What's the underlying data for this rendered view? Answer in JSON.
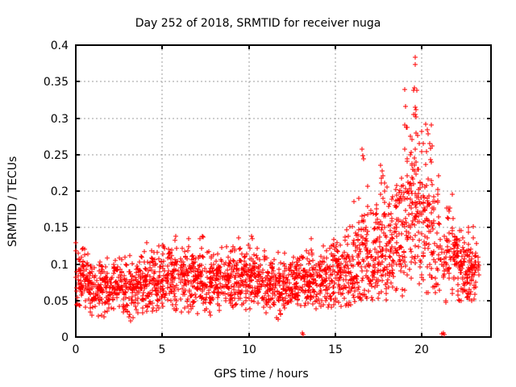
{
  "chart_data": {
    "type": "scatter",
    "title": "Day 252 of 2018, SRMTID for receiver nuga",
    "xlabel": "GPS time / hours",
    "ylabel": "SRMTID / TECUs",
    "xlim": [
      0,
      24
    ],
    "ylim": [
      0,
      0.4
    ],
    "grid": true,
    "legend": false,
    "marker": "plus",
    "marker_halfsize": 3,
    "colors": {
      "points": "#ff0000",
      "grid": "#9e9e9e",
      "axis": "#000000",
      "background": "#ffffff"
    },
    "xticks": {
      "values": [
        0,
        5,
        10,
        15,
        20
      ],
      "labels": [
        "0",
        "5",
        "10",
        "15",
        "20"
      ]
    },
    "yticks": {
      "values": [
        0,
        0.05,
        0.1,
        0.15,
        0.2,
        0.25,
        0.3,
        0.35,
        0.4
      ],
      "labels": [
        "0",
        "0.05",
        "0.1",
        "0.15",
        "0.2",
        "0.25",
        "0.3",
        "0.35",
        "0.4"
      ]
    },
    "seed": 7,
    "points_model": {
      "note": "Estimated distribution of the dense scatter read from the plot, per GPS-hour bin",
      "columns": [
        "t_start",
        "t_end",
        "count",
        "mean",
        "sd",
        "min",
        "max"
      ],
      "bins": [
        [
          0.0,
          0.5,
          55,
          0.078,
          0.022,
          0.035,
          0.132
        ],
        [
          0.5,
          1.0,
          55,
          0.072,
          0.02,
          0.03,
          0.125
        ],
        [
          1.0,
          1.5,
          50,
          0.068,
          0.02,
          0.028,
          0.115
        ],
        [
          1.5,
          2.0,
          50,
          0.066,
          0.02,
          0.025,
          0.115
        ],
        [
          2.0,
          2.5,
          50,
          0.07,
          0.019,
          0.03,
          0.115
        ],
        [
          2.5,
          3.0,
          50,
          0.07,
          0.02,
          0.025,
          0.12
        ],
        [
          3.0,
          3.5,
          50,
          0.07,
          0.021,
          0.022,
          0.125
        ],
        [
          3.5,
          4.0,
          50,
          0.074,
          0.02,
          0.03,
          0.125
        ],
        [
          4.0,
          4.5,
          50,
          0.078,
          0.021,
          0.035,
          0.13
        ],
        [
          4.5,
          5.0,
          50,
          0.08,
          0.022,
          0.035,
          0.135
        ],
        [
          5.0,
          5.5,
          50,
          0.082,
          0.024,
          0.038,
          0.152
        ],
        [
          5.5,
          6.0,
          50,
          0.08,
          0.022,
          0.035,
          0.14
        ],
        [
          6.0,
          6.5,
          50,
          0.08,
          0.023,
          0.032,
          0.142
        ],
        [
          6.5,
          7.0,
          50,
          0.082,
          0.024,
          0.03,
          0.148
        ],
        [
          7.0,
          7.5,
          50,
          0.076,
          0.024,
          0.025,
          0.15
        ],
        [
          7.5,
          8.0,
          50,
          0.072,
          0.023,
          0.02,
          0.135
        ],
        [
          8.0,
          8.5,
          50,
          0.078,
          0.021,
          0.035,
          0.13
        ],
        [
          8.5,
          9.0,
          50,
          0.08,
          0.022,
          0.035,
          0.138
        ],
        [
          9.0,
          9.5,
          50,
          0.082,
          0.023,
          0.035,
          0.15
        ],
        [
          9.5,
          10.0,
          50,
          0.08,
          0.023,
          0.032,
          0.148
        ],
        [
          10.0,
          10.5,
          50,
          0.08,
          0.023,
          0.035,
          0.145
        ],
        [
          10.5,
          11.0,
          50,
          0.078,
          0.023,
          0.03,
          0.142
        ],
        [
          11.0,
          11.5,
          50,
          0.072,
          0.022,
          0.026,
          0.125
        ],
        [
          11.5,
          12.0,
          50,
          0.07,
          0.021,
          0.024,
          0.12
        ],
        [
          12.0,
          12.5,
          50,
          0.072,
          0.02,
          0.035,
          0.118
        ],
        [
          12.5,
          13.0,
          50,
          0.074,
          0.02,
          0.04,
          0.12
        ],
        [
          13.0,
          13.5,
          50,
          0.075,
          0.021,
          0.038,
          0.128
        ],
        [
          13.5,
          14.0,
          50,
          0.076,
          0.022,
          0.038,
          0.135
        ],
        [
          14.0,
          14.5,
          50,
          0.078,
          0.023,
          0.04,
          0.14
        ],
        [
          14.5,
          15.0,
          50,
          0.08,
          0.024,
          0.04,
          0.148
        ],
        [
          15.0,
          15.5,
          50,
          0.086,
          0.026,
          0.042,
          0.16
        ],
        [
          15.5,
          16.0,
          50,
          0.09,
          0.028,
          0.042,
          0.175
        ],
        [
          16.0,
          16.5,
          55,
          0.1,
          0.035,
          0.045,
          0.21
        ],
        [
          16.5,
          17.0,
          55,
          0.11,
          0.042,
          0.048,
          0.258
        ],
        [
          17.0,
          17.5,
          55,
          0.115,
          0.04,
          0.05,
          0.22
        ],
        [
          17.5,
          18.0,
          55,
          0.12,
          0.045,
          0.05,
          0.238
        ],
        [
          18.0,
          18.5,
          55,
          0.125,
          0.045,
          0.052,
          0.23
        ],
        [
          18.5,
          19.0,
          55,
          0.135,
          0.05,
          0.055,
          0.29
        ],
        [
          19.0,
          19.5,
          60,
          0.16,
          0.06,
          0.06,
          0.34
        ],
        [
          19.5,
          20.0,
          60,
          0.17,
          0.065,
          0.065,
          0.345
        ],
        [
          20.0,
          20.5,
          55,
          0.15,
          0.055,
          0.06,
          0.3
        ],
        [
          20.5,
          21.0,
          50,
          0.13,
          0.05,
          0.055,
          0.29
        ],
        [
          21.0,
          21.5,
          35,
          0.11,
          0.035,
          0.045,
          0.19
        ],
        [
          21.5,
          22.0,
          45,
          0.112,
          0.038,
          0.045,
          0.2
        ],
        [
          22.0,
          22.5,
          60,
          0.098,
          0.028,
          0.05,
          0.165
        ],
        [
          22.5,
          23.0,
          60,
          0.092,
          0.026,
          0.048,
          0.155
        ],
        [
          23.0,
          23.3,
          25,
          0.088,
          0.024,
          0.05,
          0.135
        ]
      ]
    },
    "outliers": [
      [
        19.62,
        0.383
      ],
      [
        19.64,
        0.373
      ],
      [
        19.03,
        0.339
      ],
      [
        19.59,
        0.341
      ],
      [
        19.7,
        0.338
      ],
      [
        19.05,
        0.316
      ],
      [
        19.6,
        0.315
      ],
      [
        19.65,
        0.312
      ],
      [
        19.62,
        0.305
      ],
      [
        19.66,
        0.302
      ],
      [
        19.02,
        0.291
      ],
      [
        19.1,
        0.287
      ],
      [
        20.55,
        0.291
      ],
      [
        20.48,
        0.265
      ],
      [
        20.52,
        0.259
      ],
      [
        20.6,
        0.262
      ],
      [
        16.55,
        0.257
      ],
      [
        16.6,
        0.249
      ],
      [
        16.65,
        0.244
      ],
      [
        17.62,
        0.235
      ],
      [
        17.7,
        0.228
      ],
      [
        17.75,
        0.221
      ],
      [
        17.66,
        0.218
      ],
      [
        13.08,
        0.005
      ],
      [
        13.16,
        0.003
      ],
      [
        21.18,
        0.004
      ],
      [
        21.3,
        0.003
      ],
      [
        21.24,
        0.006
      ]
    ]
  }
}
